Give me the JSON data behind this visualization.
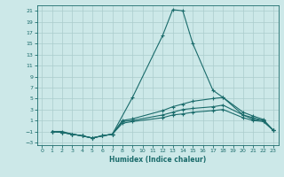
{
  "xlabel": "Humidex (Indice chaleur)",
  "bg_color": "#cce8e8",
  "line_color": "#1a6b6b",
  "grid_color": "#aacccc",
  "xlim": [
    -0.5,
    23.5
  ],
  "ylim": [
    -3.5,
    22
  ],
  "yticks": [
    -3,
    -1,
    1,
    3,
    5,
    7,
    9,
    11,
    13,
    15,
    17,
    19,
    21
  ],
  "xticks": [
    0,
    1,
    2,
    3,
    4,
    5,
    6,
    7,
    8,
    9,
    10,
    11,
    12,
    13,
    14,
    15,
    16,
    17,
    18,
    19,
    20,
    21,
    22,
    23
  ],
  "series": [
    {
      "x": [
        1,
        2,
        3,
        4,
        5,
        6,
        7,
        9,
        12,
        13,
        14,
        15,
        17,
        18,
        20,
        21,
        22,
        23
      ],
      "y": [
        -1,
        -1,
        -1.5,
        -1.8,
        -2.2,
        -1.8,
        -1.5,
        5.2,
        16.5,
        21.2,
        21.0,
        15.0,
        6.5,
        5.2,
        2.0,
        1.2,
        1.0,
        -0.8
      ]
    },
    {
      "x": [
        1,
        2,
        3,
        4,
        5,
        6,
        7,
        8,
        9,
        12,
        13,
        14,
        15,
        17,
        18,
        20,
        21,
        22,
        23
      ],
      "y": [
        -1,
        -1.2,
        -1.5,
        -1.8,
        -2.2,
        -1.8,
        -1.5,
        1.0,
        1.3,
        2.8,
        3.5,
        4.0,
        4.5,
        5.0,
        5.2,
        2.5,
        1.8,
        1.2,
        -0.8
      ]
    },
    {
      "x": [
        1,
        2,
        3,
        4,
        5,
        6,
        7,
        8,
        9,
        12,
        13,
        14,
        15,
        17,
        18,
        20,
        21,
        22,
        23
      ],
      "y": [
        -1,
        -1.2,
        -1.5,
        -1.8,
        -2.2,
        -1.8,
        -1.5,
        0.8,
        1.0,
        2.0,
        2.5,
        3.0,
        3.2,
        3.5,
        3.8,
        2.0,
        1.5,
        1.0,
        -0.8
      ]
    },
    {
      "x": [
        1,
        2,
        3,
        4,
        5,
        6,
        7,
        8,
        9,
        12,
        13,
        14,
        15,
        17,
        18,
        20,
        21,
        22,
        23
      ],
      "y": [
        -1,
        -1.2,
        -1.5,
        -1.8,
        -2.2,
        -1.8,
        -1.5,
        0.5,
        0.8,
        1.5,
        2.0,
        2.2,
        2.5,
        2.8,
        3.0,
        1.5,
        1.0,
        0.8,
        -0.8
      ]
    }
  ]
}
